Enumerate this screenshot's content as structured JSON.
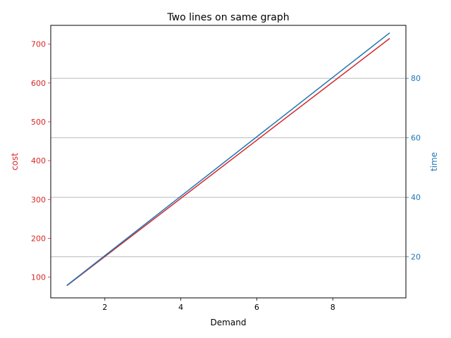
{
  "chart_data": {
    "type": "line",
    "title": "Two lines on same graph",
    "xlabel": "Demand",
    "ylabel_left": "cost",
    "ylabel_right": "time",
    "xlim": [
      0.575,
      9.925
    ],
    "ylim_left": [
      46.5,
      748.5
    ],
    "ylim_right": [
      6.2,
      97.8
    ],
    "x_ticks": [
      2,
      4,
      6,
      8
    ],
    "y_left_ticks": [
      100,
      200,
      300,
      400,
      500,
      600,
      700
    ],
    "y_right_ticks": [
      20,
      40,
      60,
      80
    ],
    "grid": "horizontal lines at right-axis ticks",
    "colors": {
      "left_axis": "#d62728",
      "right_axis": "#1f77b4"
    },
    "series": [
      {
        "axis": "left",
        "color": "#d62728",
        "x": [
          1.0,
          9.5
        ],
        "y": [
          78,
          715
        ]
      },
      {
        "axis": "right",
        "color": "#1f77b4",
        "x": [
          1.0,
          9.5
        ],
        "y": [
          10.4,
          95.3
        ]
      }
    ]
  }
}
